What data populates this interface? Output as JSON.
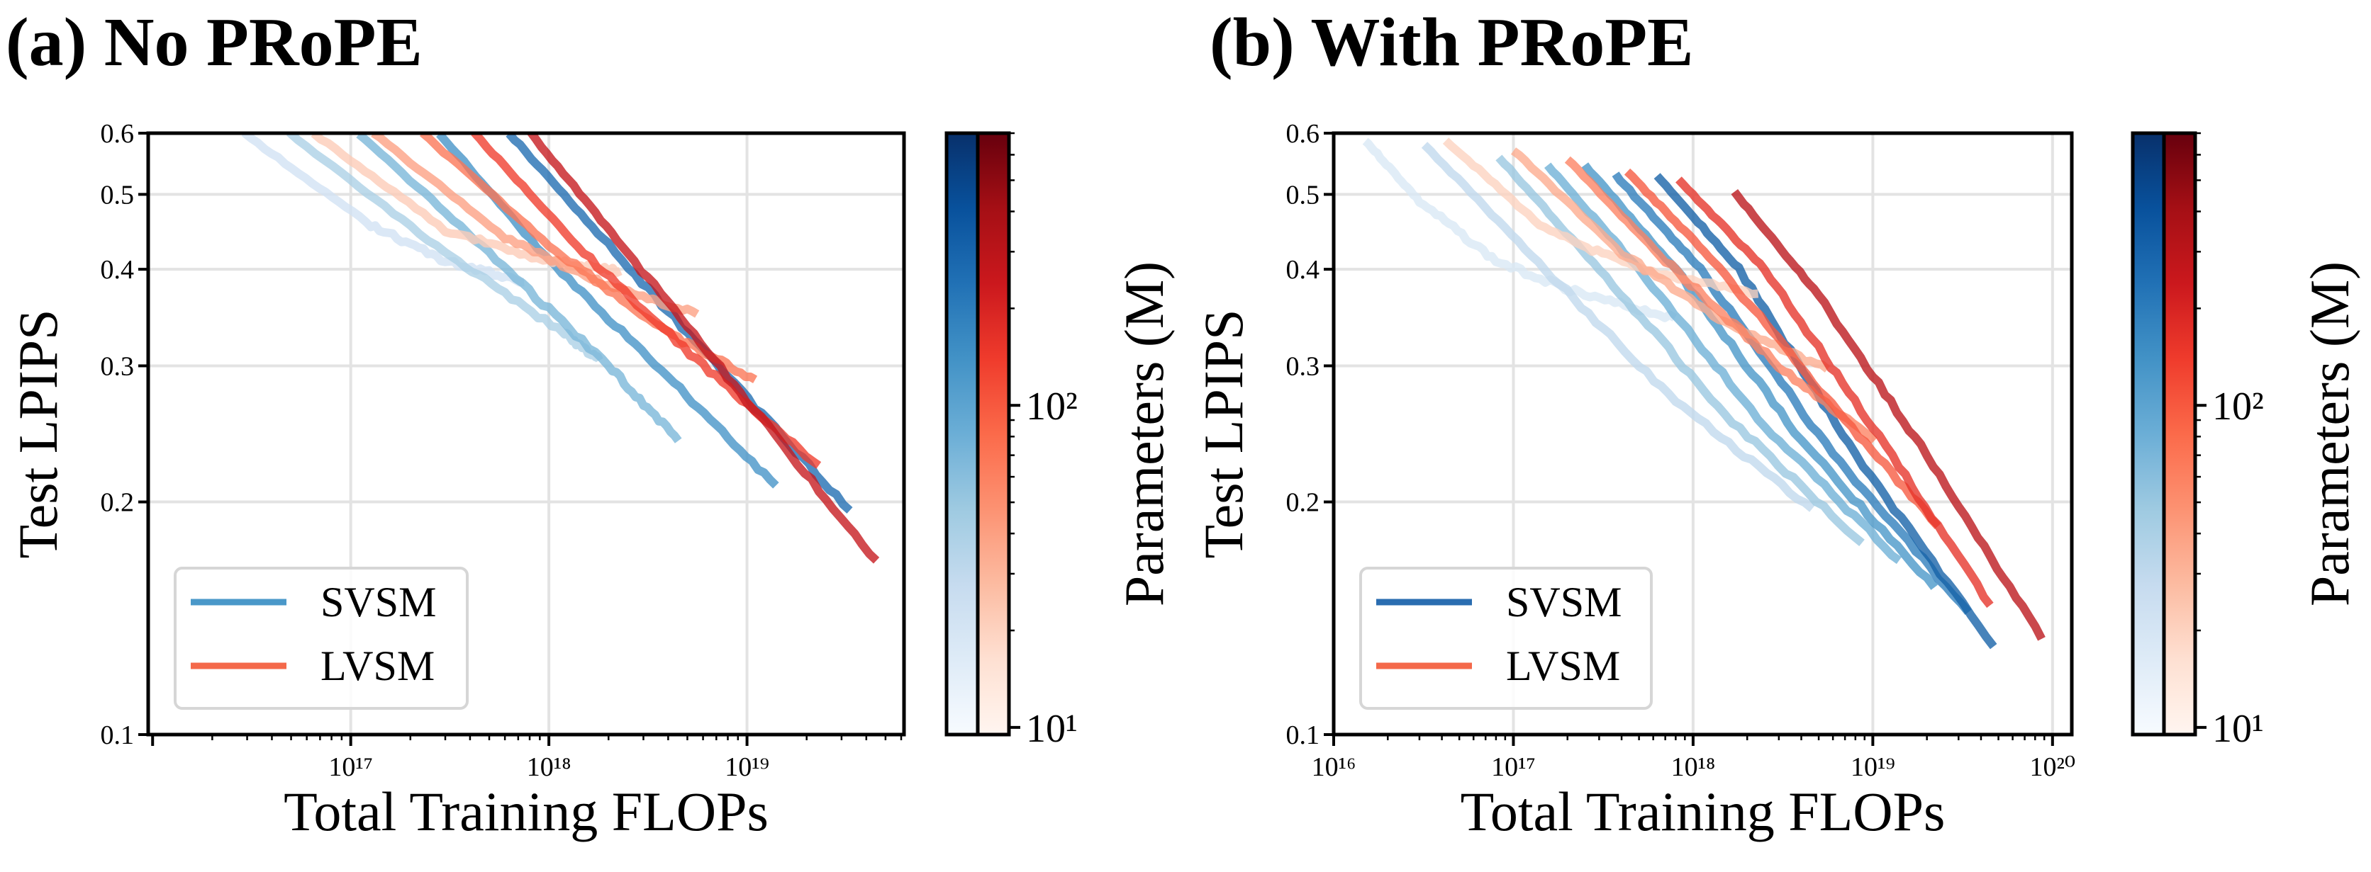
{
  "chart_data": [
    {
      "type": "line",
      "title": "(a) No PRoPE",
      "xlabel": "Total Training FLOPs",
      "ylabel": "Test LPIPS",
      "xscale": "log",
      "yscale": "log",
      "xlim": [
        9500000000000000.0,
        6.2e+19
      ],
      "ylim": [
        0.1,
        0.6
      ],
      "xticks": [
        {
          "value": 1e+17,
          "label": "10¹⁷"
        },
        {
          "value": 1e+18,
          "label": "10¹⁸"
        },
        {
          "value": 1e+19,
          "label": "10¹⁹"
        }
      ],
      "yticks": [
        {
          "value": 0.1,
          "label": "0.1"
        },
        {
          "value": 0.2,
          "label": "0.2"
        },
        {
          "value": 0.3,
          "label": "0.3"
        },
        {
          "value": 0.4,
          "label": "0.4"
        },
        {
          "value": 0.5,
          "label": "0.5"
        },
        {
          "value": 0.6,
          "label": "0.6"
        }
      ],
      "grid": true,
      "legend": {
        "placement": "lower-left",
        "entries": [
          {
            "name": "SVSM",
            "color": "#4a98c9"
          },
          {
            "name": "LVSM",
            "color": "#f4694a"
          }
        ]
      },
      "colorbar": {
        "label": "Parameters (M)",
        "scale": "log",
        "range": [
          9.5,
          700
        ],
        "ticks": [
          {
            "value": 10,
            "label": "10¹"
          },
          {
            "value": 100,
            "label": "10²"
          }
        ],
        "colormaps": [
          "Blues",
          "Reds"
        ]
      },
      "series": [
        {
          "model": "SVSM",
          "params": 22,
          "points": [
            [
              2.9e+16,
              0.6
            ],
            [
              1.2e+17,
              0.46
            ],
            [
              3e+17,
              0.41
            ],
            [
              7.5e+17,
              0.385
            ]
          ]
        },
        {
          "model": "SVSM",
          "params": 40,
          "points": [
            [
              4.9e+16,
              0.6
            ],
            [
              3e+17,
              0.42
            ],
            [
              1.2e+18,
              0.33
            ],
            [
              1.8e+18,
              0.305
            ]
          ]
        },
        {
          "model": "SVSM",
          "params": 70,
          "points": [
            [
              1.1e+17,
              0.6
            ],
            [
              5e+17,
              0.42
            ],
            [
              2e+18,
              0.3
            ],
            [
              4.5e+18,
              0.24
            ]
          ]
        },
        {
          "model": "SVSM",
          "params": 140,
          "points": [
            [
              2.8e+17,
              0.6
            ],
            [
              1e+18,
              0.41
            ],
            [
              4e+18,
              0.29
            ],
            [
              1.4e+19,
              0.21
            ]
          ]
        },
        {
          "model": "SVSM",
          "params": 260,
          "points": [
            [
              6.3e+17,
              0.6
            ],
            [
              2e+18,
              0.43
            ],
            [
              8e+18,
              0.29
            ],
            [
              3.3e+19,
              0.195
            ]
          ]
        },
        {
          "model": "LVSM",
          "params": 22,
          "points": [
            [
              6.5e+16,
              0.6
            ],
            [
              3e+17,
              0.45
            ],
            [
              1e+18,
              0.41
            ],
            [
              2.3e+18,
              0.398
            ]
          ]
        },
        {
          "model": "LVSM",
          "params": 40,
          "points": [
            [
              1.3e+17,
              0.6
            ],
            [
              6e+17,
              0.44
            ],
            [
              2e+18,
              0.38
            ],
            [
              5.6e+18,
              0.35
            ]
          ]
        },
        {
          "model": "LVSM",
          "params": 70,
          "points": [
            [
              2.3e+17,
              0.6
            ],
            [
              1e+18,
              0.43
            ],
            [
              4e+18,
              0.33
            ],
            [
              1.1e+19,
              0.288
            ]
          ]
        },
        {
          "model": "LVSM",
          "params": 140,
          "points": [
            [
              4.2e+17,
              0.6
            ],
            [
              1.5e+18,
              0.42
            ],
            [
              6e+18,
              0.3
            ],
            [
              2.3e+19,
              0.223
            ]
          ]
        },
        {
          "model": "LVSM",
          "params": 260,
          "points": [
            [
              8.1e+17,
              0.6
            ],
            [
              2.5e+18,
              0.42
            ],
            [
              1e+19,
              0.27
            ],
            [
              4.5e+19,
              0.168
            ]
          ]
        }
      ]
    },
    {
      "type": "line",
      "title": "(b) With PRoPE",
      "xlabel": "Total Training FLOPs",
      "ylabel": "Test LPIPS",
      "xscale": "log",
      "yscale": "log",
      "xlim": [
        1e+16,
        1.28e+20
      ],
      "ylim": [
        0.1,
        0.6
      ],
      "xticks": [
        {
          "value": 1e+16,
          "label": "10¹⁶"
        },
        {
          "value": 1e+17,
          "label": "10¹⁷"
        },
        {
          "value": 1e+18,
          "label": "10¹⁸"
        },
        {
          "value": 1e+19,
          "label": "10¹⁹"
        },
        {
          "value": 1e+20,
          "label": "10²⁰"
        }
      ],
      "yticks": [
        {
          "value": 0.1,
          "label": "0.1"
        },
        {
          "value": 0.2,
          "label": "0.2"
        },
        {
          "value": 0.3,
          "label": "0.3"
        },
        {
          "value": 0.4,
          "label": "0.4"
        },
        {
          "value": 0.5,
          "label": "0.5"
        },
        {
          "value": 0.6,
          "label": "0.6"
        }
      ],
      "grid": true,
      "legend": {
        "placement": "lower-left",
        "entries": [
          {
            "name": "SVSM",
            "color": "#2a6db0"
          },
          {
            "name": "LVSM",
            "color": "#f4694a"
          }
        ]
      },
      "colorbar": {
        "label": "Parameters (M)",
        "scale": "log",
        "range": [
          9.5,
          700
        ],
        "ticks": [
          {
            "value": 10,
            "label": "10¹"
          },
          {
            "value": 100,
            "label": "10²"
          }
        ],
        "colormaps": [
          "Blues",
          "Reds"
        ]
      },
      "series": [
        {
          "model": "SVSM",
          "params": 18,
          "points": [
            [
              1.5e+16,
              0.587
            ],
            [
              3e+16,
              0.49
            ],
            [
              8e+16,
              0.41
            ],
            [
              2.5e+17,
              0.37
            ],
            [
              7.9e+17,
              0.346
            ]
          ]
        },
        {
          "model": "SVSM",
          "params": 30,
          "points": [
            [
              3.2e+16,
              0.58
            ],
            [
              1.5e+17,
              0.4
            ],
            [
              8e+17,
              0.27
            ],
            [
              4.6e+18,
              0.196
            ]
          ]
        },
        {
          "model": "SVSM",
          "params": 50,
          "points": [
            [
              8.3e+16,
              0.558
            ],
            [
              3e+17,
              0.4
            ],
            [
              1.5e+18,
              0.26
            ],
            [
              8.7e+18,
              0.177
            ]
          ]
        },
        {
          "model": "SVSM",
          "params": 80,
          "points": [
            [
              1.55e+17,
              0.545
            ],
            [
              5e+17,
              0.4
            ],
            [
              2.5e+18,
              0.25
            ],
            [
              1.4e+19,
              0.168
            ]
          ]
        },
        {
          "model": "SVSM",
          "params": 130,
          "points": [
            [
              2.5e+17,
              0.545
            ],
            [
              8e+17,
              0.4
            ],
            [
              4e+18,
              0.24
            ],
            [
              2.2e+19,
              0.155
            ]
          ]
        },
        {
          "model": "SVSM",
          "params": 200,
          "points": [
            [
              3.7e+17,
              0.53
            ],
            [
              1.1e+18,
              0.4
            ],
            [
              6e+18,
              0.23
            ],
            [
              3.4e+19,
              0.144
            ]
          ]
        },
        {
          "model": "SVSM",
          "params": 320,
          "points": [
            [
              6.3e+17,
              0.53
            ],
            [
              1.8e+18,
              0.4
            ],
            [
              8e+18,
              0.23
            ],
            [
              4.7e+19,
              0.13
            ]
          ]
        },
        {
          "model": "LVSM",
          "params": 20,
          "points": [
            [
              4.2e+16,
              0.588
            ],
            [
              1.5e+17,
              0.45
            ],
            [
              5e+17,
              0.4
            ],
            [
              2.3e+18,
              0.372
            ]
          ]
        },
        {
          "model": "LVSM",
          "params": 35,
          "points": [
            [
              1e+17,
              0.57
            ],
            [
              4e+17,
              0.42
            ],
            [
              1.5e+18,
              0.34
            ],
            [
              5.6e+18,
              0.297
            ]
          ]
        },
        {
          "model": "LVSM",
          "params": 60,
          "points": [
            [
              2e+17,
              0.555
            ],
            [
              7e+17,
              0.41
            ],
            [
              3e+18,
              0.3
            ],
            [
              1.02e+19,
              0.24
            ]
          ]
        },
        {
          "model": "LVSM",
          "params": 100,
          "points": [
            [
              4.3e+17,
              0.535
            ],
            [
              1.3e+18,
              0.41
            ],
            [
              5e+18,
              0.28
            ],
            [
              2.3e+19,
              0.186
            ]
          ]
        },
        {
          "model": "LVSM",
          "params": 160,
          "points": [
            [
              8.3e+17,
              0.522
            ],
            [
              2.5e+18,
              0.4
            ],
            [
              1e+19,
              0.25
            ],
            [
              4.5e+19,
              0.147
            ]
          ]
        },
        {
          "model": "LVSM",
          "params": 300,
          "points": [
            [
              1.7e+18,
              0.503
            ],
            [
              5e+18,
              0.37
            ],
            [
              2e+19,
              0.23
            ],
            [
              8.7e+19,
              0.133
            ]
          ]
        }
      ]
    }
  ]
}
